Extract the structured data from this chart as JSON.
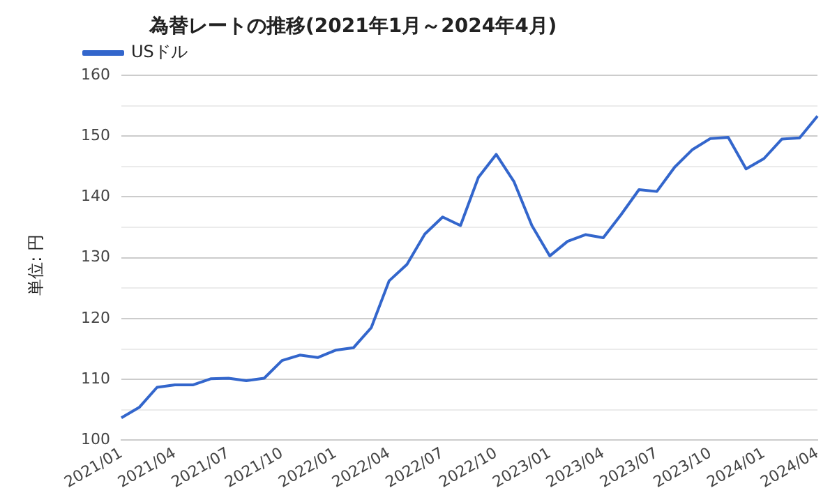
{
  "chart_data": {
    "type": "line",
    "title": "為替レートの推移(2021年1月～2024年4月)",
    "ylabel": "単位: 円",
    "categories": [
      "2021/01",
      null,
      null,
      "2021/04",
      null,
      null,
      "2021/07",
      null,
      null,
      "2021/10",
      null,
      null,
      "2022/01",
      null,
      null,
      "2022/04",
      null,
      null,
      "2022/07",
      null,
      null,
      "2022/10",
      null,
      null,
      "2023/01",
      null,
      null,
      "2023/04",
      null,
      null,
      "2023/07",
      null,
      null,
      "2023/10",
      null,
      null,
      "2024/01",
      null,
      null,
      "2024/04"
    ],
    "series": [
      {
        "name": "USドル",
        "color": "#3366cc",
        "values": [
          103.7,
          105.4,
          108.7,
          109.1,
          109.1,
          110.1,
          110.2,
          109.8,
          110.2,
          113.1,
          114.0,
          113.6,
          114.8,
          115.2,
          118.5,
          126.2,
          128.9,
          133.9,
          136.7,
          135.3,
          143.2,
          147.0,
          142.5,
          135.3,
          130.3,
          132.7,
          133.8,
          133.3,
          137.1,
          141.2,
          140.9,
          144.9,
          147.8,
          149.6,
          149.8,
          144.6,
          146.3,
          149.5,
          149.7,
          153.3
        ]
      }
    ],
    "ylim": [
      100,
      160
    ],
    "yticks": [
      100,
      {
        "value": 105,
        "label": null
      },
      110,
      {
        "value": 115,
        "label": null
      },
      120,
      {
        "value": 125,
        "label": null
      },
      130,
      {
        "value": 135,
        "label": null
      },
      140,
      {
        "value": 145,
        "label": null
      },
      150,
      {
        "value": 155,
        "label": null
      },
      160
    ],
    "grid": "y",
    "legend": "top left",
    "marker": "none",
    "line_style": "solid"
  }
}
